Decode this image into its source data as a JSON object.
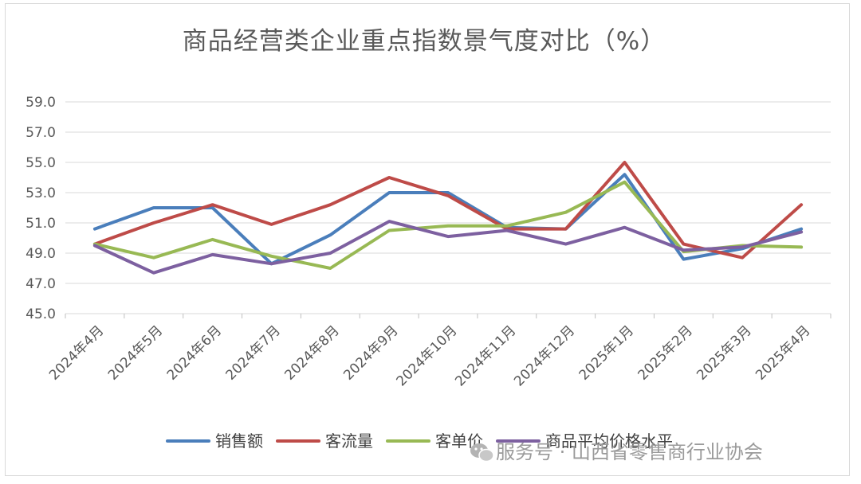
{
  "chart_data": {
    "type": "line",
    "title": "商品经营类企业重点指数景气度对比（%）",
    "categories": [
      "2024年4月",
      "2024年5月",
      "2024年6月",
      "2024年7月",
      "2024年8月",
      "2024年9月",
      "2024年10月",
      "2024年11月",
      "2024年12月",
      "2025年1月",
      "2025年2月",
      "2025年3月",
      "2025年4月"
    ],
    "yticks": [
      "45.0",
      "47.0",
      "49.0",
      "51.0",
      "53.0",
      "55.0",
      "57.0",
      "59.0"
    ],
    "ylim": [
      45,
      59
    ],
    "grid": true,
    "legend_position": "bottom",
    "series": [
      {
        "name": "销售额",
        "color": "#4a7ebb",
        "values": [
          50.6,
          52.0,
          52.0,
          48.3,
          50.2,
          53.0,
          53.0,
          50.7,
          50.6,
          54.2,
          48.6,
          49.3,
          50.6
        ]
      },
      {
        "name": "客流量",
        "color": "#be4b48",
        "values": [
          49.6,
          51.0,
          52.2,
          50.9,
          52.2,
          54.0,
          52.8,
          50.6,
          50.6,
          55.0,
          49.6,
          48.7,
          52.2
        ]
      },
      {
        "name": "客单价",
        "color": "#98b954",
        "values": [
          49.6,
          48.7,
          49.9,
          48.8,
          48.0,
          50.5,
          50.8,
          50.8,
          51.7,
          53.7,
          49.1,
          49.5,
          49.4
        ]
      },
      {
        "name": "商品平均价格水平",
        "color": "#7d60a0",
        "values": [
          49.5,
          47.7,
          48.9,
          48.3,
          49.0,
          51.1,
          50.1,
          50.5,
          49.6,
          50.7,
          49.2,
          49.4,
          50.4
        ]
      }
    ]
  },
  "watermark": {
    "text": "服务号 · 山西省零售商行业协会",
    "icon": "wechat-icon"
  }
}
